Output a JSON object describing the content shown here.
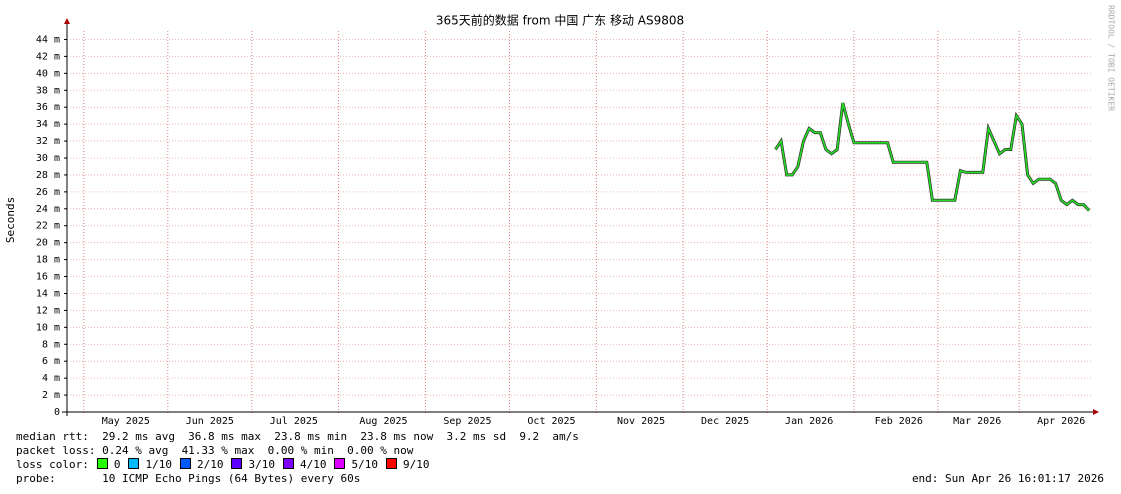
{
  "chart_data": {
    "type": "line",
    "title": "365天前的数据 from 中国 广东 移动 AS9808",
    "y_label": "Seconds",
    "watermark": "RRDTOOL / TOBI OETIKER",
    "categories": [
      null,
      null,
      null,
      null,
      null,
      null,
      null,
      null,
      null,
      null,
      "May 2025",
      null,
      null,
      null,
      null,
      null,
      null,
      null,
      null,
      null,
      null,
      null,
      null,
      null,
      null,
      "Jun 2025",
      null,
      null,
      null,
      null,
      null,
      null,
      null,
      null,
      null,
      null,
      null,
      null,
      null,
      null,
      "Jul 2025",
      null,
      null,
      null,
      null,
      null,
      null,
      null,
      null,
      null,
      null,
      null,
      null,
      null,
      null,
      null,
      "Aug 2025",
      null,
      null,
      null,
      null,
      null,
      null,
      null,
      null,
      null,
      null,
      null,
      null,
      null,
      null,
      "Sep 2025",
      null,
      null,
      null,
      null,
      null,
      null,
      null,
      null,
      null,
      null,
      null,
      null,
      null,
      null,
      "Oct 2025",
      null,
      null,
      null,
      null,
      null,
      null,
      null,
      null,
      null,
      null,
      null,
      null,
      null,
      null,
      null,
      "Nov 2025",
      null,
      null,
      null,
      null,
      null,
      null,
      null,
      null,
      null,
      null,
      null,
      null,
      null,
      null,
      "Dec 2025",
      null,
      null,
      null,
      null,
      null,
      null,
      null,
      null,
      null,
      null,
      null,
      null,
      null,
      null,
      "Jan 2026",
      null,
      null,
      null,
      null,
      null,
      null,
      null,
      null,
      null,
      null,
      null,
      null,
      null,
      null,
      null,
      "Feb 2026",
      null,
      null,
      null,
      null,
      null,
      null,
      null,
      null,
      null,
      null,
      null,
      null,
      null,
      "Mar 2026",
      null,
      null,
      null,
      null,
      null,
      null,
      null,
      null,
      null,
      null,
      null,
      null,
      null,
      null,
      "Apr 2026",
      null,
      null,
      null,
      null,
      null
    ],
    "values": [
      null,
      null,
      null,
      null,
      null,
      null,
      null,
      null,
      null,
      null,
      null,
      null,
      null,
      null,
      null,
      null,
      null,
      null,
      null,
      null,
      null,
      null,
      null,
      null,
      null,
      null,
      null,
      null,
      null,
      null,
      null,
      null,
      null,
      null,
      null,
      null,
      null,
      null,
      null,
      null,
      null,
      null,
      null,
      null,
      null,
      null,
      null,
      null,
      null,
      null,
      null,
      null,
      null,
      null,
      null,
      null,
      null,
      null,
      null,
      null,
      null,
      null,
      null,
      null,
      null,
      null,
      null,
      null,
      null,
      null,
      null,
      null,
      null,
      null,
      null,
      null,
      null,
      null,
      null,
      null,
      null,
      null,
      null,
      null,
      null,
      null,
      null,
      null,
      null,
      null,
      null,
      null,
      null,
      null,
      null,
      null,
      null,
      null,
      null,
      null,
      null,
      null,
      null,
      null,
      null,
      null,
      null,
      null,
      null,
      null,
      null,
      null,
      null,
      null,
      null,
      null,
      null,
      null,
      null,
      null,
      null,
      null,
      null,
      null,
      null,
      null,
      0.031,
      0.032,
      0.028,
      0.028,
      0.029,
      0.032,
      0.0335,
      0.033,
      0.033,
      0.031,
      0.0305,
      0.031,
      0.0365,
      0.034,
      0.0318,
      0.0318,
      0.0318,
      0.0318,
      0.0318,
      0.0318,
      0.0318,
      0.0295,
      0.0295,
      0.0295,
      0.0295,
      0.0295,
      0.0295,
      0.0295,
      0.025,
      0.025,
      0.025,
      0.025,
      0.025,
      0.0285,
      0.0283,
      0.0283,
      0.0283,
      0.0283,
      0.0335,
      0.032,
      0.0305,
      0.031,
      0.031,
      0.035,
      0.034,
      0.028,
      0.027,
      0.0275,
      0.0275,
      0.0275,
      0.027,
      0.025,
      0.0245,
      0.025,
      0.0245,
      0.0245,
      0.0238
    ],
    "color": "#22dd22",
    "ylim": [
      0,
      0.045
    ],
    "yticks": [
      0,
      {
        "value": 0.002,
        "label": "2 m"
      },
      {
        "value": 0.004,
        "label": "4 m"
      },
      {
        "value": 0.006,
        "label": "6 m"
      },
      {
        "value": 0.008,
        "label": "8 m"
      },
      {
        "value": 0.01,
        "label": "10 m"
      },
      {
        "value": 0.012,
        "label": "12 m"
      },
      {
        "value": 0.014,
        "label": "14 m"
      },
      {
        "value": 0.016,
        "label": "16 m"
      },
      {
        "value": 0.018,
        "label": "18 m"
      },
      {
        "value": 0.02,
        "label": "20 m"
      },
      {
        "value": 0.022,
        "label": "22 m"
      },
      {
        "value": 0.024,
        "label": "24 m"
      },
      {
        "value": 0.026,
        "label": "26 m"
      },
      {
        "value": 0.028,
        "label": "28 m"
      },
      {
        "value": 0.03,
        "label": "30 m"
      },
      {
        "value": 0.032,
        "label": "32 m"
      },
      {
        "value": 0.034,
        "label": "34 m"
      },
      {
        "value": 0.036,
        "label": "36 m"
      },
      {
        "value": 0.038,
        "label": "38 m"
      },
      {
        "value": 0.04,
        "label": "40 m"
      },
      {
        "value": 0.042,
        "label": "42 m"
      },
      {
        "value": 0.044,
        "label": "44 m"
      }
    ],
    "grid": true
  },
  "footer": {
    "median_rtt": "median rtt:  29.2 ms avg  36.8 ms max  23.8 ms min  23.8 ms now  3.2 ms sd  9.2  am/s",
    "packet_loss": "packet loss: 0.24 % avg  41.33 % max  0.00 % min  0.00 % now",
    "loss_color_label": "loss color:",
    "loss_colors": [
      {
        "label": "0",
        "color": "#26ff00"
      },
      {
        "label": "1/10",
        "color": "#00b8ff"
      },
      {
        "label": "2/10",
        "color": "#0059ff"
      },
      {
        "label": "3/10",
        "color": "#5e00ff"
      },
      {
        "label": "4/10",
        "color": "#7e00ff"
      },
      {
        "label": "5/10",
        "color": "#dd00ff"
      },
      {
        "label": "9/10",
        "color": "#ff0000"
      }
    ],
    "probe": "probe:       10 ICMP Echo Pings (64 Bytes) every 60s",
    "end": "end: Sun Apr 26 16:01:17 2026"
  }
}
